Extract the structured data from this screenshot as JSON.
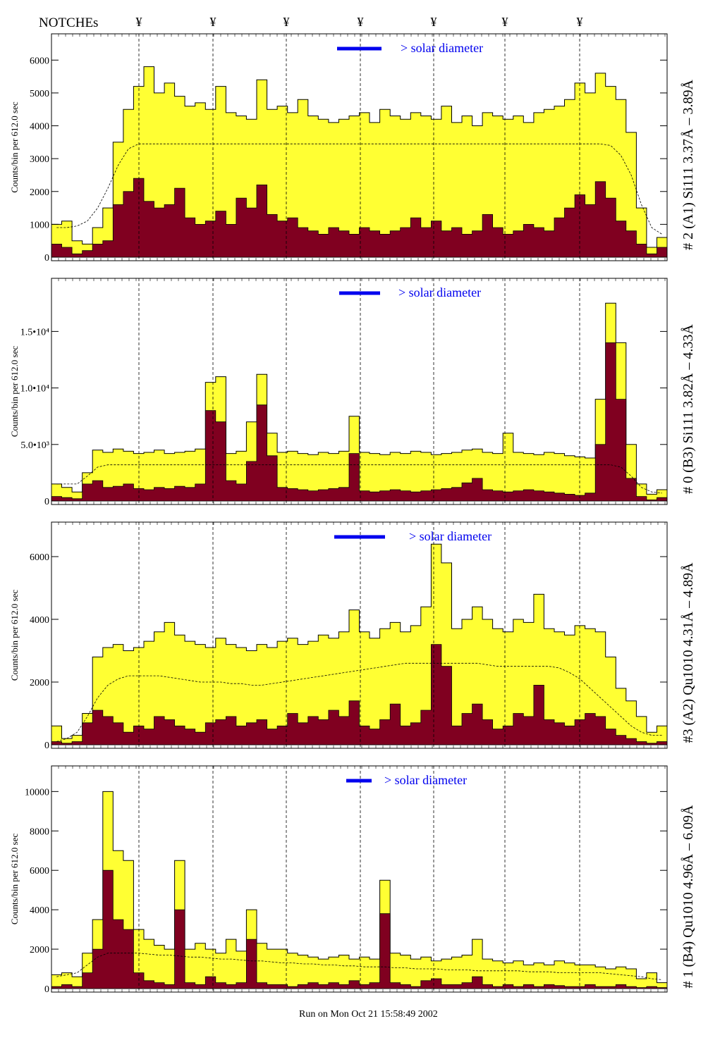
{
  "header": {
    "notches_label": "NOTCHEs",
    "notch_symbol": "¥",
    "notch_count": 7
  },
  "footer": {
    "run_text": "Run on Mon Oct 21 15:58:49 2002"
  },
  "colors": {
    "total": "#ffff33",
    "component": "#800020",
    "legend": "#0000ee",
    "model": "#000000"
  },
  "chart_data": [
    {
      "type": "bar",
      "title": "# 2 (A1) Si111  3.37Å – 3.89Å",
      "ylabel": "Counts/bin per    612.0 sec",
      "legend": "> solar diameter",
      "ylim": [
        0,
        6800
      ],
      "yticks": [
        0,
        1000,
        2000,
        3000,
        4000,
        5000,
        6000
      ],
      "yticklabels": [
        "0",
        "1000",
        "2000",
        "3000",
        "4000",
        "5000",
        "6000"
      ],
      "total": [
        1000,
        1100,
        500,
        400,
        900,
        1500,
        3500,
        4500,
        5200,
        5800,
        5000,
        5300,
        4900,
        4600,
        4700,
        4500,
        5200,
        4400,
        4300,
        4200,
        5400,
        4500,
        4600,
        4400,
        4800,
        4300,
        4200,
        4100,
        4200,
        4300,
        4400,
        4100,
        4500,
        4300,
        4200,
        4400,
        4300,
        4200,
        4600,
        4100,
        4300,
        4000,
        4400,
        4300,
        4200,
        4300,
        4100,
        4400,
        4500,
        4600,
        4800,
        5300,
        5000,
        5600,
        5200,
        4800,
        3800,
        1500,
        300,
        600
      ],
      "component": [
        400,
        300,
        100,
        200,
        400,
        500,
        1600,
        2000,
        2400,
        1700,
        1500,
        1600,
        2100,
        1200,
        1000,
        1100,
        1400,
        1000,
        1800,
        1500,
        2200,
        1300,
        1100,
        1200,
        900,
        800,
        700,
        900,
        800,
        700,
        900,
        800,
        700,
        800,
        900,
        1200,
        900,
        1100,
        800,
        900,
        700,
        800,
        1300,
        900,
        700,
        800,
        1000,
        900,
        800,
        1200,
        1500,
        1900,
        1600,
        2300,
        1800,
        1100,
        800,
        400,
        100,
        300
      ],
      "model": [
        900,
        900,
        950,
        1100,
        1500,
        2100,
        2800,
        3300,
        3450,
        3450,
        3450,
        3450,
        3450,
        3450,
        3450,
        3450,
        3450,
        3450,
        3450,
        3450,
        3450,
        3450,
        3450,
        3450,
        3450,
        3450,
        3450,
        3450,
        3450,
        3450,
        3450,
        3450,
        3450,
        3450,
        3450,
        3450,
        3450,
        3450,
        3450,
        3450,
        3450,
        3450,
        3450,
        3450,
        3450,
        3450,
        3450,
        3450,
        3450,
        3450,
        3450,
        3450,
        3450,
        3450,
        3400,
        3100,
        2500,
        1600,
        900,
        700
      ]
    },
    {
      "type": "bar",
      "title": "# 0 (B3) Si111  3.82Å – 4.33Å",
      "ylabel": "Counts/bin per    612.0 sec",
      "legend": "> solar diameter",
      "ylim": [
        0,
        19700
      ],
      "yticks": [
        0,
        5000,
        10000,
        15000
      ],
      "yticklabels": [
        "0",
        "5.0•10³",
        "1.0•10⁴",
        "1.5•10⁴"
      ],
      "total": [
        1500,
        1200,
        800,
        2500,
        4500,
        4300,
        4600,
        4400,
        4200,
        4300,
        4500,
        4200,
        4300,
        4400,
        4600,
        10500,
        11000,
        4200,
        4400,
        7000,
        11200,
        6000,
        4300,
        4400,
        4200,
        4100,
        4300,
        4200,
        4400,
        7500,
        4300,
        4200,
        4100,
        4300,
        4200,
        4400,
        4300,
        4100,
        4200,
        4300,
        4500,
        4600,
        4300,
        4200,
        6000,
        4300,
        4200,
        4100,
        4300,
        4200,
        4000,
        3900,
        3800,
        9000,
        17500,
        14000,
        5000,
        1500,
        600,
        1000
      ],
      "component": [
        400,
        300,
        200,
        1500,
        1800,
        1200,
        1300,
        1500,
        1100,
        1000,
        1200,
        1100,
        1300,
        1200,
        1500,
        8000,
        7000,
        1800,
        1500,
        3500,
        8500,
        4000,
        1200,
        1100,
        1000,
        900,
        1000,
        1100,
        1200,
        4200,
        900,
        800,
        900,
        1000,
        900,
        800,
        900,
        1000,
        1100,
        1200,
        1600,
        2000,
        1000,
        900,
        800,
        900,
        1000,
        900,
        800,
        700,
        600,
        500,
        700,
        5000,
        14000,
        9000,
        2000,
        400,
        100,
        300
      ],
      "model": [
        1500,
        1500,
        1500,
        2200,
        3000,
        3200,
        3200,
        3200,
        3200,
        3200,
        3200,
        3200,
        3200,
        3200,
        3200,
        3200,
        3200,
        3200,
        3200,
        3200,
        3200,
        3200,
        3200,
        3200,
        3200,
        3200,
        3200,
        3200,
        3200,
        3200,
        3200,
        3200,
        3200,
        3200,
        3200,
        3200,
        3200,
        3200,
        3200,
        3200,
        3200,
        3200,
        3200,
        3200,
        3200,
        3200,
        3200,
        3200,
        3200,
        3200,
        3200,
        3200,
        3200,
        3200,
        3200,
        3000,
        2200,
        1200,
        800,
        700
      ]
    },
    {
      "type": "bar",
      "title": "#3 (A2) Qu1010  4.31Å – 4.89Å",
      "ylabel": "Counts/bin per    612.0 sec",
      "legend": "> solar diameter",
      "ylim": [
        0,
        7100
      ],
      "yticks": [
        0,
        2000,
        4000,
        6000
      ],
      "yticklabels": [
        "0",
        "2000",
        "4000",
        "6000"
      ],
      "total": [
        600,
        200,
        300,
        1000,
        2800,
        3100,
        3200,
        3000,
        3100,
        3300,
        3600,
        3900,
        3500,
        3300,
        3200,
        3100,
        3400,
        3200,
        3100,
        3000,
        3200,
        3100,
        3300,
        3400,
        3200,
        3300,
        3500,
        3400,
        3600,
        4300,
        3600,
        3400,
        3700,
        3900,
        3600,
        3800,
        4400,
        6400,
        5800,
        3700,
        4000,
        4400,
        4000,
        3700,
        3600,
        4000,
        3900,
        4800,
        3700,
        3600,
        3500,
        3800,
        3700,
        3600,
        2800,
        1800,
        1400,
        900,
        400,
        600
      ],
      "component": [
        100,
        50,
        100,
        700,
        1100,
        900,
        700,
        400,
        600,
        500,
        900,
        800,
        600,
        500,
        400,
        700,
        800,
        900,
        600,
        700,
        800,
        500,
        600,
        1000,
        700,
        900,
        800,
        1100,
        900,
        1400,
        600,
        500,
        800,
        1300,
        600,
        700,
        1100,
        3200,
        2500,
        600,
        1000,
        1300,
        800,
        500,
        600,
        1000,
        900,
        1900,
        800,
        700,
        600,
        800,
        1000,
        900,
        500,
        300,
        200,
        100,
        50,
        100
      ],
      "model": [
        100,
        200,
        400,
        900,
        1500,
        1900,
        2100,
        2200,
        2200,
        2200,
        2200,
        2150,
        2100,
        2050,
        2000,
        2000,
        2000,
        1950,
        1950,
        1900,
        1900,
        1950,
        2000,
        2050,
        2100,
        2150,
        2200,
        2250,
        2300,
        2350,
        2400,
        2450,
        2500,
        2550,
        2600,
        2600,
        2600,
        2600,
        2600,
        2600,
        2600,
        2600,
        2550,
        2500,
        2500,
        2500,
        2500,
        2500,
        2500,
        2450,
        2300,
        2100,
        1800,
        1500,
        1200,
        900,
        600,
        400,
        300,
        300
      ]
    },
    {
      "type": "bar",
      "title": "# 1 (B4) Qu1010 4.96Å – 6.09Å",
      "ylabel": "Counts/bin per    612.0 sec",
      "legend": "> solar diameter",
      "ylim": [
        0,
        11300
      ],
      "yticks": [
        0,
        2000,
        4000,
        6000,
        8000,
        10000
      ],
      "yticklabels": [
        "0",
        "2000",
        "4000",
        "6000",
        "8000",
        "10000"
      ],
      "total": [
        700,
        800,
        600,
        1800,
        3500,
        10000,
        7000,
        6500,
        3000,
        2500,
        2200,
        2000,
        6500,
        2000,
        2300,
        2000,
        1800,
        2500,
        1900,
        4000,
        2300,
        2000,
        2000,
        1800,
        1700,
        1600,
        1500,
        1600,
        1700,
        1500,
        1600,
        1500,
        5500,
        1800,
        1700,
        1500,
        1600,
        1400,
        1500,
        1600,
        1700,
        2500,
        1500,
        1400,
        1300,
        1400,
        1200,
        1300,
        1200,
        1400,
        1300,
        1200,
        1200,
        1100,
        1000,
        1100,
        1000,
        500,
        800,
        300
      ],
      "component": [
        100,
        200,
        100,
        800,
        2000,
        6000,
        3500,
        3000,
        800,
        400,
        300,
        200,
        4000,
        300,
        200,
        600,
        300,
        200,
        300,
        2500,
        300,
        200,
        200,
        100,
        200,
        300,
        200,
        300,
        200,
        400,
        200,
        300,
        3800,
        300,
        200,
        100,
        400,
        500,
        200,
        200,
        300,
        600,
        200,
        100,
        200,
        100,
        200,
        100,
        200,
        150,
        100,
        100,
        200,
        100,
        100,
        200,
        100,
        50,
        100,
        50
      ],
      "model": [
        600,
        700,
        800,
        1200,
        1600,
        1800,
        1800,
        1800,
        1800,
        1750,
        1700,
        1700,
        1650,
        1600,
        1600,
        1550,
        1500,
        1500,
        1450,
        1400,
        1400,
        1350,
        1300,
        1300,
        1250,
        1250,
        1200,
        1200,
        1150,
        1150,
        1100,
        1100,
        1100,
        1050,
        1050,
        1000,
        1000,
        1000,
        950,
        950,
        950,
        900,
        900,
        900,
        900,
        900,
        850,
        850,
        850,
        800,
        800,
        800,
        800,
        800,
        750,
        700,
        650,
        600,
        500,
        450
      ]
    }
  ]
}
